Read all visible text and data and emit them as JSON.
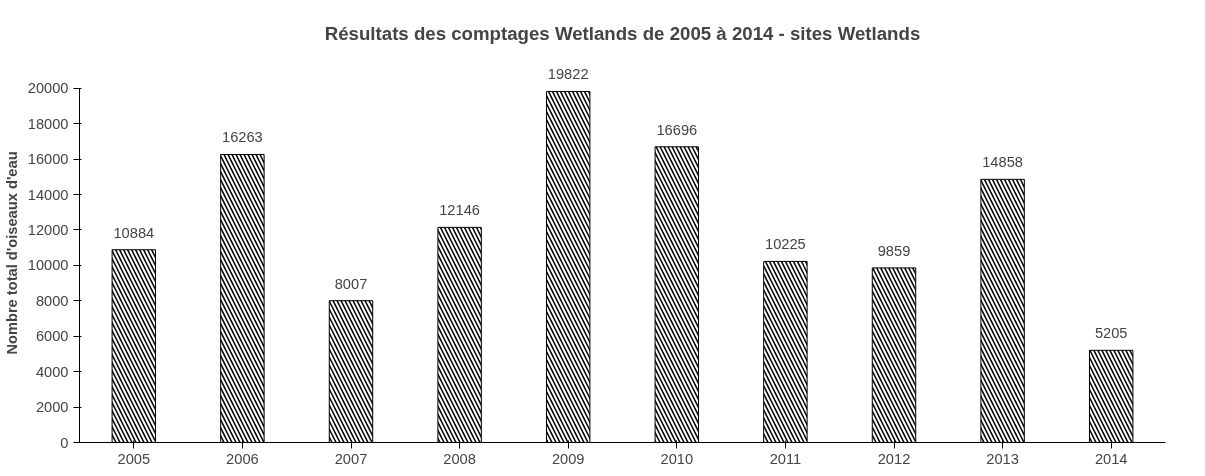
{
  "chart_data": {
    "type": "bar",
    "title": "Résultats des comptages Wetlands de 2005 à 2014 - sites Wetlands",
    "ylabel": "Nombre total d'oiseaux d'eau",
    "categories": [
      "2005",
      "2006",
      "2007",
      "2008",
      "2009",
      "2010",
      "2011",
      "2012",
      "2013",
      "2014"
    ],
    "values": [
      10884,
      16263,
      8007,
      12146,
      19822,
      16696,
      10225,
      9859,
      14858,
      5205
    ],
    "color": "#000000",
    "data_labels": true,
    "grid": false,
    "ylim": [
      0,
      20000
    ],
    "yticks": [
      0,
      2000,
      4000,
      6000,
      8000,
      10000,
      12000,
      14000,
      16000,
      18000,
      20000
    ]
  }
}
